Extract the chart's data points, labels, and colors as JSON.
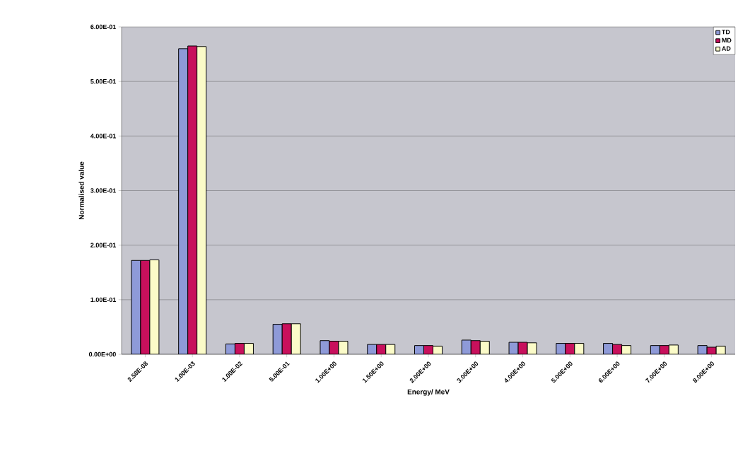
{
  "chart_data": {
    "type": "bar",
    "xlabel": "Energy/ MeV",
    "ylabel": "Normalised value",
    "categories": [
      "2.58E-08",
      "1.00E-03",
      "1.00E-02",
      "5.00E-01",
      "1.00E+00",
      "1.50E+00",
      "2.00E+00",
      "3.00E+00",
      "4.00E+00",
      "5.00E+00",
      "6.00E+00",
      "7.00E+00",
      "8.00E+00"
    ],
    "series": [
      {
        "name": "TD",
        "color": "#8e9ad8",
        "values": [
          0.172,
          0.56,
          0.019,
          0.055,
          0.025,
          0.018,
          0.016,
          0.026,
          0.022,
          0.02,
          0.02,
          0.016,
          0.016
        ]
      },
      {
        "name": "MD",
        "color": "#c8105c",
        "values": [
          0.172,
          0.565,
          0.02,
          0.056,
          0.024,
          0.018,
          0.016,
          0.025,
          0.022,
          0.02,
          0.018,
          0.016,
          0.013
        ]
      },
      {
        "name": "AD",
        "color": "#fbfbc8",
        "values": [
          0.173,
          0.564,
          0.02,
          0.056,
          0.024,
          0.018,
          0.015,
          0.024,
          0.021,
          0.02,
          0.016,
          0.017,
          0.015
        ]
      }
    ],
    "ylim": [
      0,
      0.6
    ],
    "yticks": [
      {
        "value": 0,
        "label": "0.00E+00"
      },
      {
        "value": 0.1,
        "label": "1.00E-01"
      },
      {
        "value": 0.2,
        "label": "2.00E-01"
      },
      {
        "value": 0.3,
        "label": "3.00E-01"
      },
      {
        "value": 0.4,
        "label": "4.00E-01"
      },
      {
        "value": 0.5,
        "label": "5.00E-01"
      },
      {
        "value": 0.6,
        "label": "6.00E-01"
      }
    ],
    "grid": "y",
    "legend": "top right"
  }
}
